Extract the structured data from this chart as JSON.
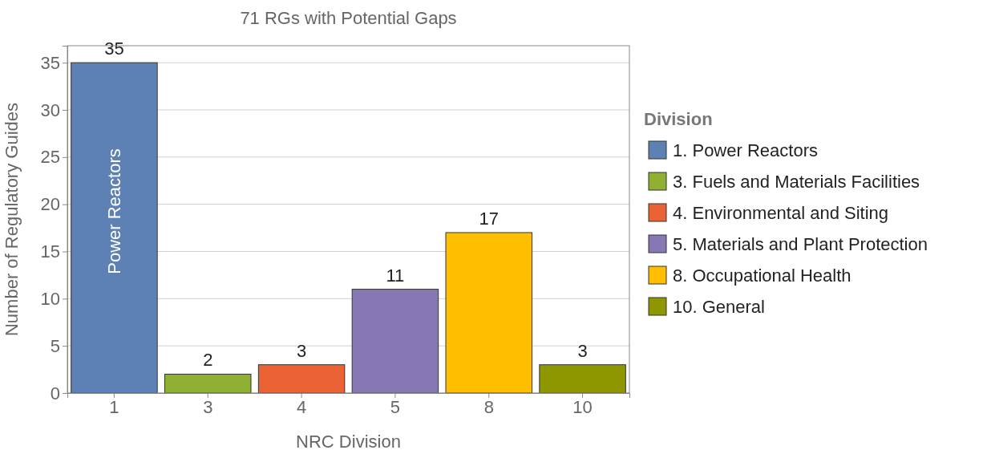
{
  "chart_data": {
    "type": "bar",
    "title": "71 RGs with Potential Gaps",
    "xlabel": "NRC Division",
    "ylabel": "Number of Regulatory Guides",
    "legend_title": "Division",
    "categories": [
      "1",
      "3",
      "4",
      "5",
      "8",
      "10"
    ],
    "stacked": true,
    "series": [
      {
        "name": "1. Power Reactors",
        "color": "#5e81b5",
        "values": [
          35,
          null,
          null,
          null,
          null,
          null
        ]
      },
      {
        "name": "3. Fuels and Materials Facilities",
        "color": "#8fb032",
        "values": [
          null,
          2,
          null,
          null,
          null,
          null
        ]
      },
      {
        "name": "4. Environmental and Siting",
        "color": "#eb6235",
        "values": [
          null,
          null,
          3,
          null,
          null,
          null
        ]
      },
      {
        "name": "5. Materials and Plant Protection",
        "color": "#8778b3",
        "values": [
          null,
          null,
          null,
          11,
          null,
          null
        ]
      },
      {
        "name": "8. Occupational Health",
        "color": "#ffbe00",
        "values": [
          null,
          null,
          null,
          null,
          17,
          null
        ]
      },
      {
        "name": "10. General",
        "color": "#8f9700",
        "values": [
          null,
          null,
          null,
          null,
          null,
          3
        ]
      }
    ],
    "ylim": [
      0,
      36.8
    ],
    "yticks": [
      0,
      5,
      10,
      15,
      20,
      25,
      30,
      35
    ],
    "grid": "y",
    "legend": "right",
    "data_labels": true,
    "annotations": [
      "Power Reactors"
    ]
  }
}
